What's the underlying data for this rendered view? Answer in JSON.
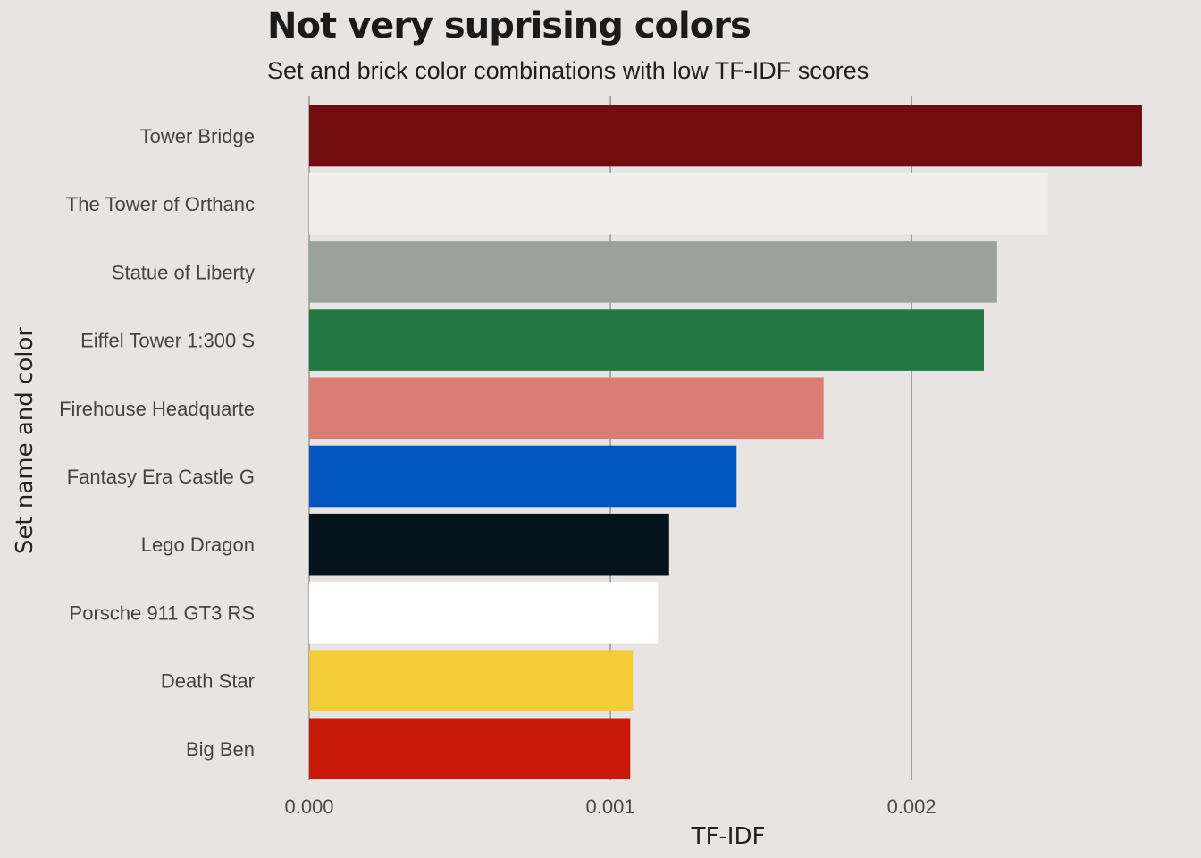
{
  "chart_data": {
    "type": "bar",
    "orientation": "horizontal",
    "title": "Not very suprising colors",
    "subtitle": "Set and brick color combinations with low TF-IDF scores",
    "xlabel": "TF-IDF",
    "ylabel": "Set name and color",
    "xlim": [
      0,
      0.00278
    ],
    "xticks": [
      0.0,
      0.001,
      0.002
    ],
    "xtick_labels": [
      "0.000",
      "0.001",
      "0.002"
    ],
    "grid": "vertical major",
    "legend": "none",
    "categories": [
      "Tower Bridge",
      "The Tower of Orthanc",
      "Statue of Liberty",
      "Eiffel Tower 1:300 S",
      "Firehouse Headquarte",
      "Fantasy Era Castle G",
      "Lego Dragon",
      "Porsche 911 GT3 RS",
      "Death Star",
      "Big Ben"
    ],
    "values": [
      0.002765,
      0.002453,
      0.002284,
      0.00224,
      0.001708,
      0.001419,
      0.001195,
      0.001158,
      0.001075,
      0.001066
    ],
    "colors": [
      "#720e0f",
      "#f0efed",
      "#9ba19d",
      "#237841",
      "#da7e75",
      "#0055bf",
      "#05131d",
      "#ffffff",
      "#f2cd37",
      "#c91a09"
    ]
  },
  "background": "#e8e4e1",
  "grid_color": "#6f6f6f"
}
